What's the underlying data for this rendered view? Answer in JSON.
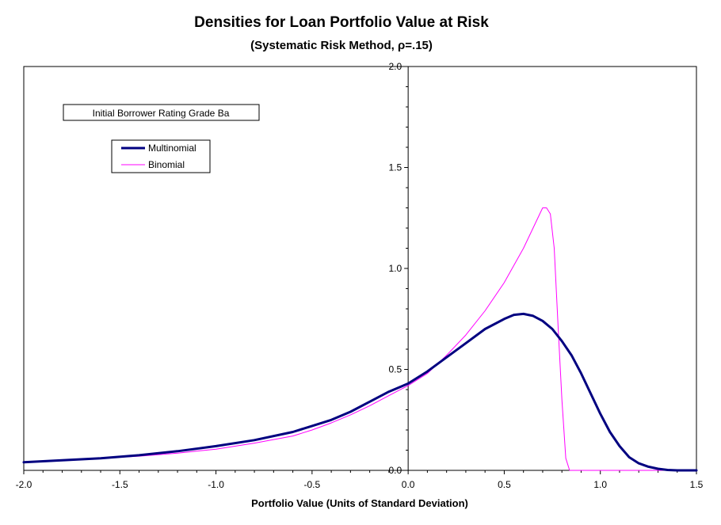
{
  "chart_data": {
    "type": "line",
    "title": "Densities for Loan Portfolio Value at Risk",
    "subtitle": "(Systematic Risk Method, ρ=.15)",
    "xlabel": "Portfolio Value (Units of Standard Deviation)",
    "ylabel": "",
    "xlim": [
      -2.0,
      1.5
    ],
    "ylim": [
      0.0,
      2.0
    ],
    "x_ticks": [
      "-2.0",
      "-1.5",
      "-1.0",
      "-0.5",
      "0.0",
      "0.5",
      "1.0",
      "1.5"
    ],
    "y_ticks": [
      "0.0",
      "0.5",
      "1.0",
      "1.5",
      "2.0"
    ],
    "grid": false,
    "legend_position": "upper-left",
    "annotation": "Initial Borrower Rating Grade Ba",
    "series": [
      {
        "name": "Multinomial",
        "color": "#000080",
        "x": [
          -2.0,
          -1.8,
          -1.6,
          -1.4,
          -1.2,
          -1.0,
          -0.8,
          -0.6,
          -0.5,
          -0.4,
          -0.3,
          -0.2,
          -0.1,
          0.0,
          0.1,
          0.2,
          0.3,
          0.4,
          0.5,
          0.55,
          0.6,
          0.65,
          0.7,
          0.75,
          0.8,
          0.85,
          0.9,
          0.95,
          1.0,
          1.05,
          1.1,
          1.15,
          1.2,
          1.25,
          1.3,
          1.35,
          1.4,
          1.45,
          1.5
        ],
        "values": [
          0.04,
          0.05,
          0.06,
          0.075,
          0.095,
          0.12,
          0.15,
          0.19,
          0.22,
          0.25,
          0.29,
          0.34,
          0.39,
          0.43,
          0.49,
          0.56,
          0.63,
          0.7,
          0.75,
          0.77,
          0.775,
          0.765,
          0.74,
          0.7,
          0.64,
          0.57,
          0.48,
          0.38,
          0.28,
          0.19,
          0.12,
          0.065,
          0.035,
          0.018,
          0.008,
          0.002,
          0.0,
          0.0,
          0.0
        ]
      },
      {
        "name": "Binomial",
        "color": "#ff00ff",
        "x": [
          -2.0,
          -1.8,
          -1.6,
          -1.4,
          -1.2,
          -1.0,
          -0.8,
          -0.6,
          -0.5,
          -0.4,
          -0.3,
          -0.2,
          -0.1,
          0.0,
          0.1,
          0.2,
          0.3,
          0.4,
          0.5,
          0.6,
          0.65,
          0.7,
          0.72,
          0.74,
          0.76,
          0.78,
          0.8,
          0.82,
          0.84,
          0.9,
          1.0,
          1.2,
          1.5
        ],
        "values": [
          0.04,
          0.05,
          0.06,
          0.07,
          0.085,
          0.105,
          0.135,
          0.17,
          0.2,
          0.235,
          0.275,
          0.32,
          0.37,
          0.42,
          0.48,
          0.57,
          0.67,
          0.79,
          0.93,
          1.1,
          1.2,
          1.3,
          1.3,
          1.27,
          1.1,
          0.72,
          0.35,
          0.06,
          0.0,
          0.0,
          0.0,
          0.0,
          0.0
        ]
      }
    ]
  }
}
